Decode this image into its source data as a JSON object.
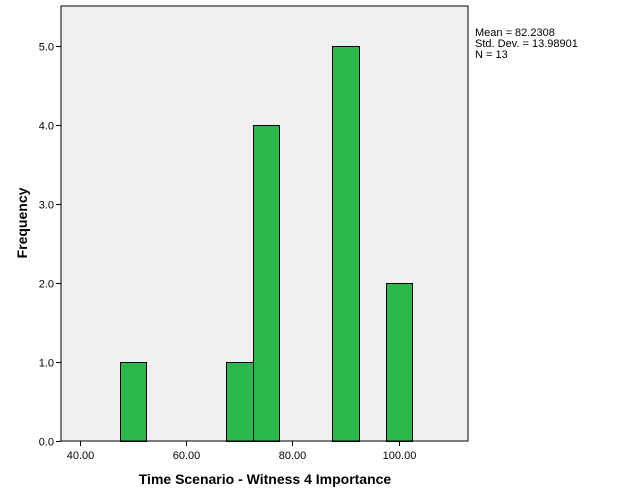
{
  "chart_data": {
    "type": "bar",
    "subtype": "histogram",
    "xlabel": "Time Scenario - Witness 4 Importance",
    "ylabel": "Frequency",
    "xlim": [
      36.5,
      113
    ],
    "ylim": [
      0,
      5.5
    ],
    "x_ticks": [
      {
        "value": 40,
        "label": "40.00"
      },
      {
        "value": 60,
        "label": "60.00"
      },
      {
        "value": 80,
        "label": "80.00"
      },
      {
        "value": 100,
        "label": "100.00"
      }
    ],
    "y_ticks": [
      {
        "value": 0,
        "label": "0.0"
      },
      {
        "value": 1,
        "label": "1.0"
      },
      {
        "value": 2,
        "label": "2.0"
      },
      {
        "value": 3,
        "label": "3.0"
      },
      {
        "value": 4,
        "label": "4.0"
      },
      {
        "value": 5,
        "label": "5.0"
      }
    ],
    "bins": [
      {
        "x0": 47.5,
        "x1": 52.5,
        "count": 1
      },
      {
        "x0": 67.5,
        "x1": 72.5,
        "count": 1
      },
      {
        "x0": 72.5,
        "x1": 77.5,
        "count": 4
      },
      {
        "x0": 87.5,
        "x1": 92.5,
        "count": 5
      },
      {
        "x0": 97.5,
        "x1": 102.5,
        "count": 2
      }
    ],
    "stats": {
      "mean": "Mean = 82.2308",
      "std_dev": "Std. Dev. = 13.98901",
      "n": "N = 13"
    },
    "grid": false,
    "colors": {
      "bar_fill": "#2db84b",
      "bar_stroke": "#000000",
      "plot_background": "#f0f0f0",
      "frame": "#000000"
    }
  }
}
